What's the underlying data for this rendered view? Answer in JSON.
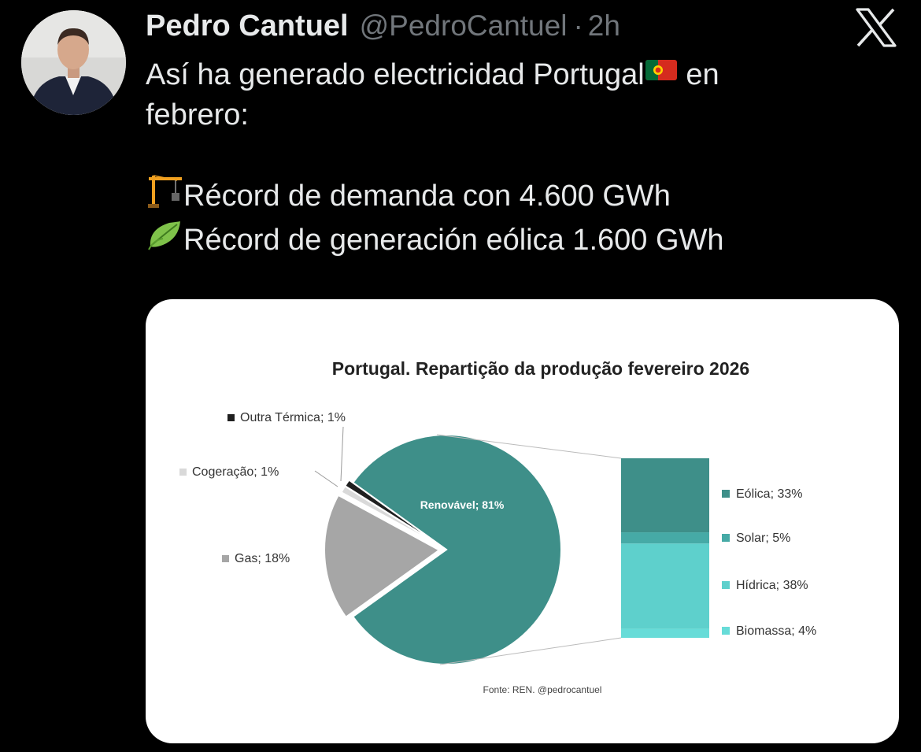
{
  "tweet": {
    "author_name": "Pedro Cantuel",
    "handle": "@PedroCantuel",
    "separator": "·",
    "time": "2h",
    "text_line1": "Así ha generado electricidad Portugal",
    "text_line1_after": "en",
    "text_line2": "febrero:",
    "text_line3": "Récord de demanda con 4.600 GWh",
    "text_line4": "Récord de generación eólica 1.600 GWh",
    "icons": [
      "portugal-flag-icon",
      "crane-icon",
      "leaf-icon",
      "x-logo-icon"
    ]
  },
  "chart_data": {
    "type": "pie",
    "title": "Portugal. Repartição da produção fevereiro 2026",
    "slices": [
      {
        "label": "Renovável; 81%",
        "value": 81,
        "color": "#3e8f89"
      },
      {
        "label": "Gas; 18%",
        "value": 18,
        "color": "#a6a6a6"
      },
      {
        "label": "Cogeração; 1%",
        "value": 1,
        "color": "#d9d9d9"
      },
      {
        "label": "Outra Térmica; 1%",
        "value": 1,
        "color": "#1f1f1f"
      }
    ],
    "breakdown": {
      "of": "Renovável",
      "items": [
        {
          "label": "Eólica; 33%",
          "value": 33,
          "color": "#3e8f89"
        },
        {
          "label": "Solar; 5%",
          "value": 5,
          "color": "#46aaa6"
        },
        {
          "label": "Hídrica; 38%",
          "value": 38,
          "color": "#5ed0cc"
        },
        {
          "label": "Biomassa; 4%",
          "value": 4,
          "color": "#67dcd8"
        }
      ]
    },
    "source": "Fonte: REN. @pedrocantuel"
  }
}
